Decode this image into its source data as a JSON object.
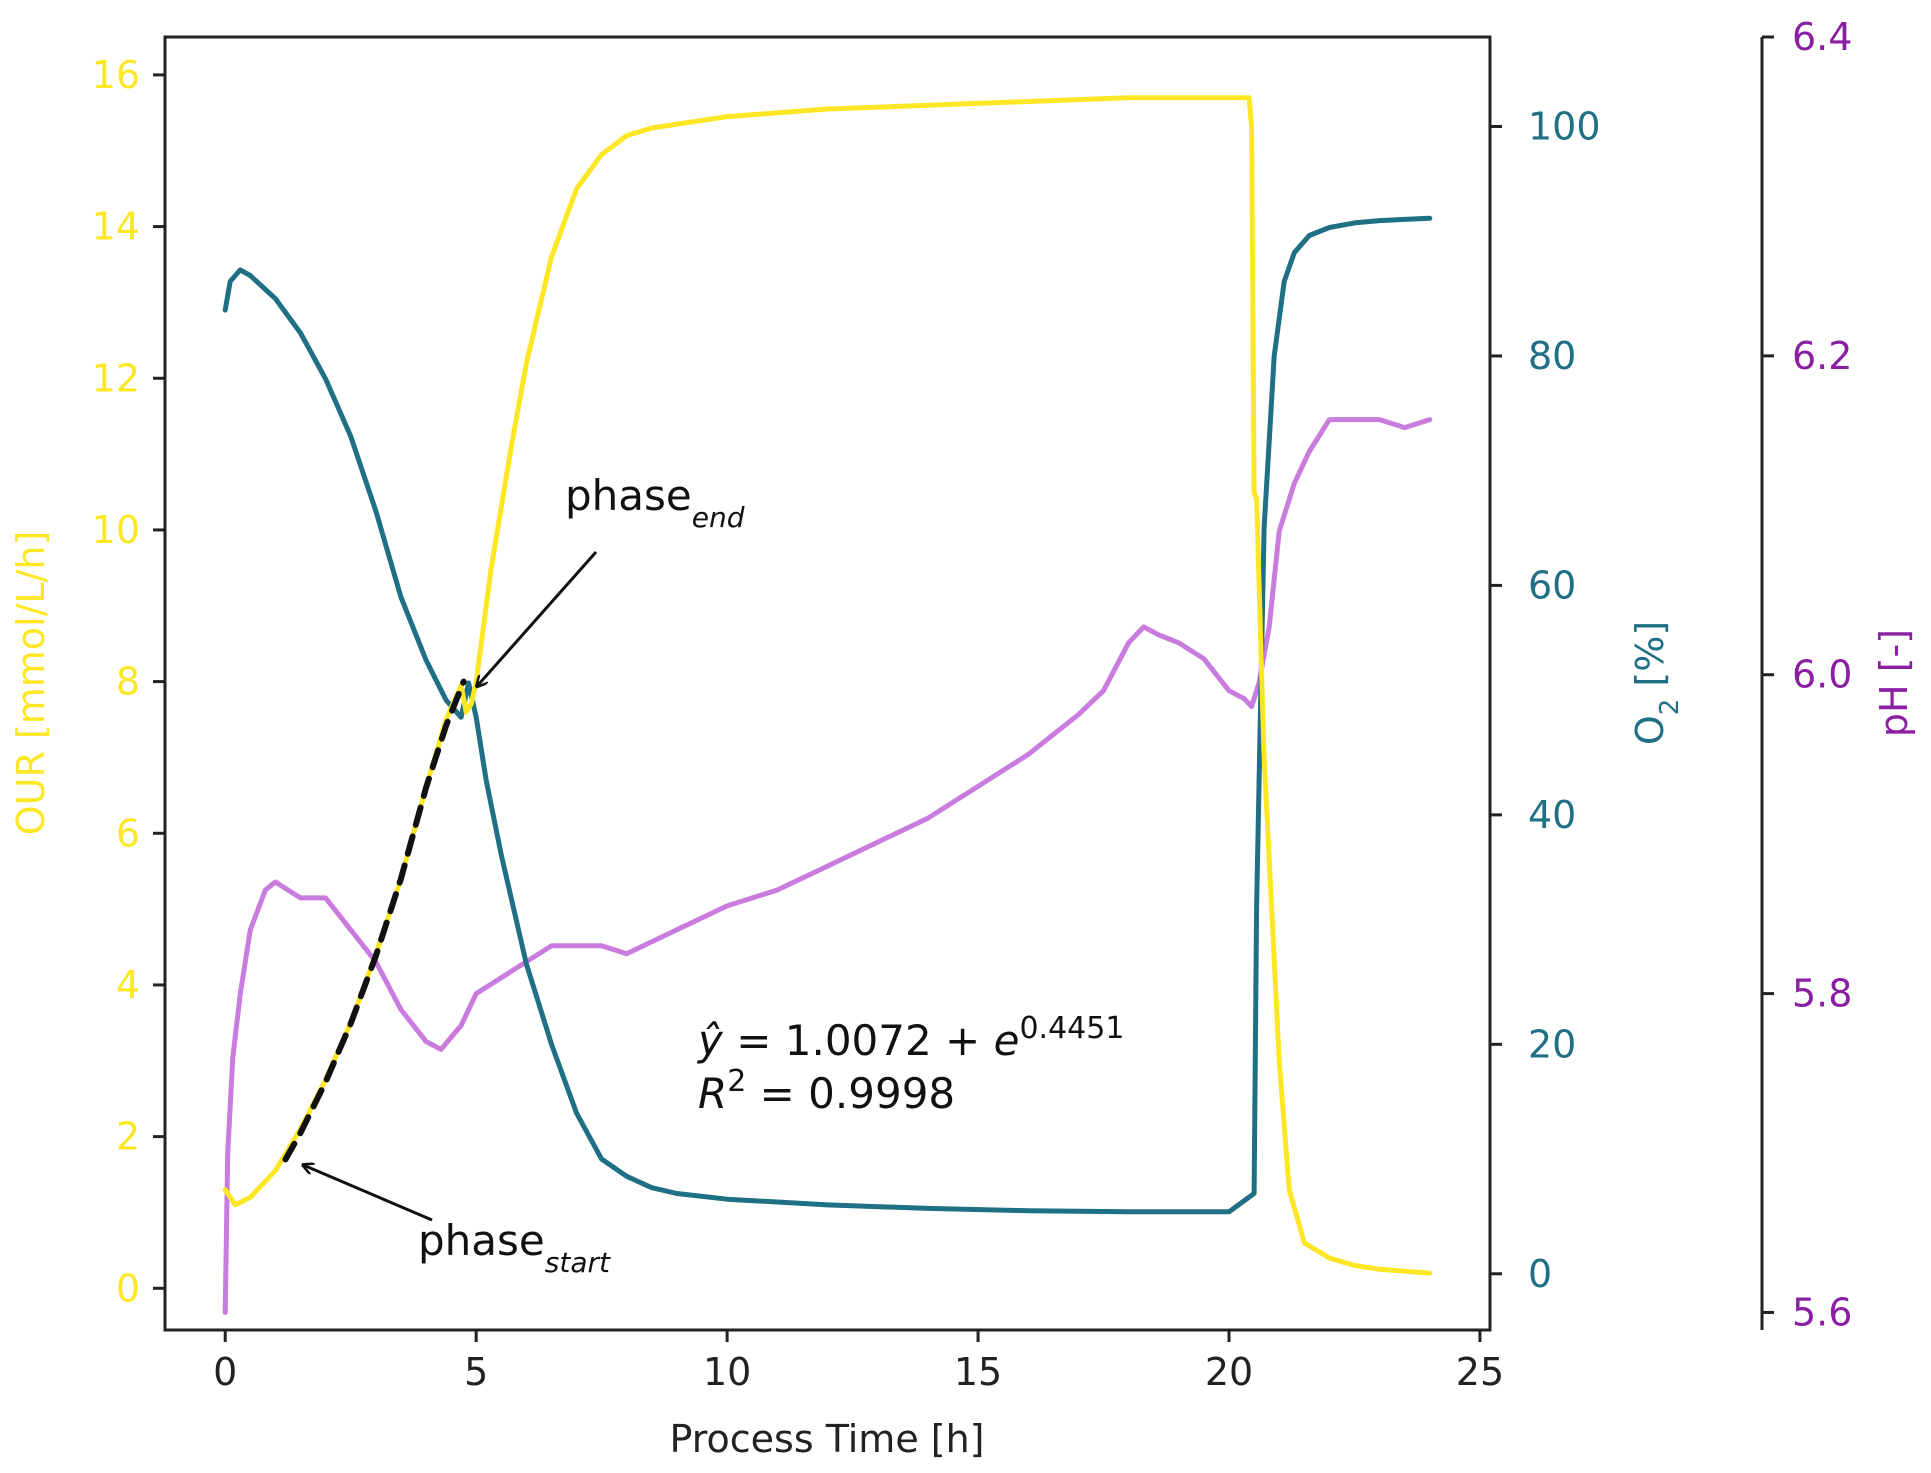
{
  "chart_data": {
    "type": "line",
    "title": "",
    "xlabel": "Process Time [h]",
    "xlim": [
      -1.2,
      25.2
    ],
    "xticks": [
      0,
      5,
      10,
      15,
      20,
      25
    ],
    "axes": {
      "our": {
        "label": "OUR [mmol/L/h]",
        "color": "#fde725",
        "ylim": [
          -0.55,
          16.5
        ],
        "ticks": [
          0,
          2,
          4,
          6,
          8,
          10,
          12,
          14,
          16
        ]
      },
      "o2": {
        "label": "O",
        "label_sub": "2",
        "label_suffix": " [%]",
        "color": "#1f6f85",
        "ylim": [
          -4.9,
          107.8
        ],
        "ticks": [
          0,
          20,
          40,
          60,
          80,
          100
        ]
      },
      "ph": {
        "label": "pH [-]",
        "color": "#8b1fa3",
        "ylim": [
          5.589,
          6.4
        ],
        "ticks": [
          5.6,
          5.8,
          6.0,
          6.2,
          6.4
        ]
      }
    },
    "series": [
      {
        "name": "OUR",
        "axis": "our",
        "color": "#fde725",
        "x": [
          0.0,
          0.2,
          0.5,
          1.0,
          1.5,
          2.0,
          2.5,
          3.0,
          3.5,
          4.0,
          4.4,
          4.7,
          4.8,
          4.9,
          5.0,
          5.3,
          5.7,
          6.0,
          6.5,
          7.0,
          7.5,
          8.0,
          8.5,
          9.0,
          10.0,
          12.0,
          14.0,
          16.0,
          18.0,
          20.0,
          20.4,
          20.45,
          20.5,
          20.55,
          20.7,
          20.85,
          21.0,
          21.2,
          21.5,
          22.0,
          22.5,
          23.0,
          24.0
        ],
        "y": [
          1.3,
          1.1,
          1.2,
          1.55,
          2.1,
          2.75,
          3.5,
          4.4,
          5.4,
          6.6,
          7.5,
          7.95,
          7.6,
          7.7,
          8.0,
          9.5,
          11.1,
          12.2,
          13.6,
          14.5,
          14.95,
          15.2,
          15.3,
          15.35,
          15.45,
          15.55,
          15.6,
          15.65,
          15.7,
          15.7,
          15.7,
          15.3,
          10.5,
          10.4,
          7.0,
          5.0,
          3.0,
          1.3,
          0.6,
          0.4,
          0.3,
          0.25,
          0.2
        ]
      },
      {
        "name": "O2",
        "axis": "o2",
        "color": "#1f6f85",
        "x": [
          0.0,
          0.1,
          0.3,
          0.5,
          1.0,
          1.5,
          2.0,
          2.5,
          3.0,
          3.5,
          4.0,
          4.4,
          4.7,
          4.85,
          5.0,
          5.2,
          5.5,
          6.0,
          6.5,
          7.0,
          7.5,
          8.0,
          8.5,
          9.0,
          10.0,
          12.0,
          14.0,
          16.0,
          18.0,
          20.0,
          20.5,
          20.55,
          20.7,
          20.9,
          21.1,
          21.3,
          21.6,
          22.0,
          22.5,
          23.0,
          23.5,
          24.0
        ],
        "y": [
          84.0,
          86.5,
          87.5,
          87.0,
          85.0,
          82.0,
          78.0,
          73.0,
          66.5,
          59.0,
          53.5,
          50.0,
          48.5,
          51.5,
          48.5,
          43.0,
          36.5,
          27.0,
          20.0,
          14.0,
          10.0,
          8.5,
          7.5,
          7.0,
          6.5,
          6.0,
          5.7,
          5.5,
          5.4,
          5.4,
          7.0,
          32.0,
          65.0,
          80.0,
          86.5,
          89.0,
          90.5,
          91.2,
          91.6,
          91.8,
          91.9,
          92.0
        ]
      },
      {
        "name": "pH",
        "axis": "ph",
        "color": "#c97bde",
        "x": [
          0.0,
          0.05,
          0.15,
          0.3,
          0.5,
          0.8,
          1.0,
          1.5,
          2.0,
          2.5,
          3.0,
          3.5,
          4.0,
          4.3,
          4.7,
          5.0,
          5.5,
          6.0,
          6.5,
          7.0,
          7.5,
          8.0,
          9.0,
          10.0,
          11.0,
          12.0,
          13.0,
          14.0,
          15.0,
          16.0,
          17.0,
          17.5,
          18.0,
          18.3,
          18.6,
          19.0,
          19.5,
          20.0,
          20.3,
          20.45,
          20.6,
          20.8,
          21.0,
          21.3,
          21.6,
          22.0,
          22.5,
          23.0,
          23.5,
          24.0
        ],
        "y": [
          5.6,
          5.7,
          5.76,
          5.8,
          5.84,
          5.865,
          5.87,
          5.86,
          5.86,
          5.84,
          5.82,
          5.79,
          5.77,
          5.765,
          5.78,
          5.8,
          5.81,
          5.82,
          5.83,
          5.83,
          5.83,
          5.825,
          5.84,
          5.855,
          5.865,
          5.88,
          5.895,
          5.91,
          5.93,
          5.95,
          5.975,
          5.99,
          6.02,
          6.03,
          6.025,
          6.02,
          6.01,
          5.99,
          5.985,
          5.98,
          5.995,
          6.03,
          6.09,
          6.12,
          6.14,
          6.16,
          6.16,
          6.16,
          6.155,
          6.16
        ]
      },
      {
        "name": "Exponential fit",
        "axis": "our",
        "color": "#111111",
        "dashed": true,
        "x": [
          1.2,
          1.5,
          2.0,
          2.5,
          3.0,
          3.5,
          4.0,
          4.4,
          4.75
        ],
        "y": [
          1.7,
          2.05,
          2.72,
          3.49,
          4.38,
          5.4,
          6.6,
          7.42,
          8.0
        ]
      }
    ],
    "annotations": [
      {
        "text": "phase",
        "subscript": "end",
        "x": 4.9,
        "y": 8.1,
        "axis": "our"
      },
      {
        "text": "phase",
        "subscript": "start",
        "x": 1.4,
        "y": 1.65,
        "axis": "our"
      }
    ],
    "fit_text": {
      "equation_lhs": "ŷ",
      "equation_mid": " = 1.0072 + ",
      "equation_base": "e",
      "equation_exp": "0.4451",
      "r2_lhs": "R",
      "r2_sup": "2",
      "r2_rhs": " = 0.9998"
    }
  }
}
